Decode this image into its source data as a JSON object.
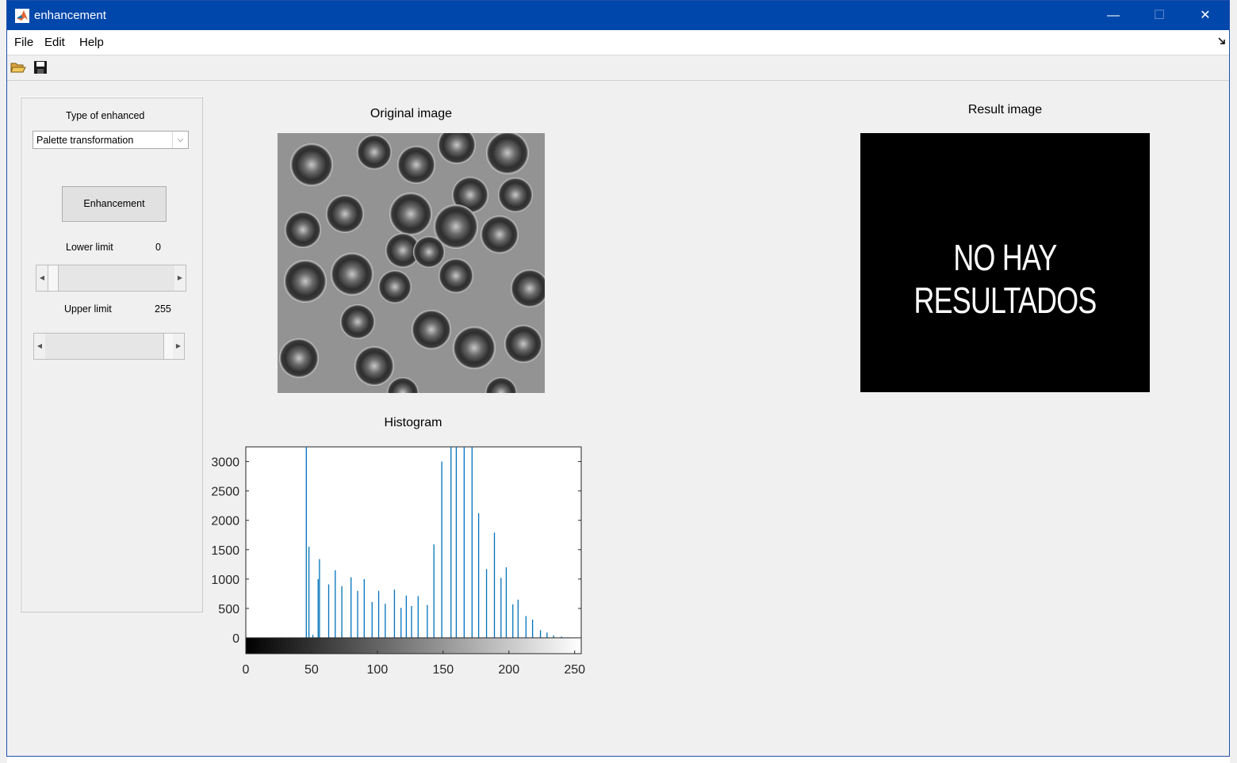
{
  "window": {
    "title": "enhancement",
    "controls": {
      "minimize": "—",
      "maximize": "☐",
      "close": "✕"
    }
  },
  "menu": [
    "File",
    "Edit",
    "Help"
  ],
  "toolbar": {
    "icons": [
      "open-folder-icon",
      "save-disk-icon"
    ]
  },
  "panel": {
    "type_label": "Type of enhanced",
    "type_selected": "Palette transformation",
    "enhance_button": "Enhancement",
    "lower_label": "Lower limit",
    "lower_value": "0",
    "upper_label": "Upper limit",
    "upper_value": "255",
    "lower_slider_fraction": 0,
    "upper_slider_fraction": 1
  },
  "original": {
    "title": "Original image"
  },
  "result": {
    "title": "Result image",
    "message": "NO HAY RESULTADOS"
  },
  "histogram": {
    "title": "Histogram"
  },
  "colors": {
    "titlebar": "#0047ab",
    "bar": "#0072bd",
    "window_bg": "#f0f0f0"
  },
  "chart_data": {
    "type": "bar",
    "title": "Histogram",
    "xlim": [
      0,
      255
    ],
    "ylim": [
      0,
      3250
    ],
    "xticks": [
      0,
      50,
      100,
      150,
      200,
      250
    ],
    "yticks": [
      0,
      500,
      1000,
      1500,
      2000,
      2500,
      3000
    ],
    "x": [
      46,
      48,
      51,
      55,
      56,
      63,
      68,
      73,
      80,
      85,
      90,
      96,
      101,
      106,
      113,
      118,
      122,
      126,
      131,
      138,
      143,
      149,
      156,
      160,
      166,
      172,
      177,
      183,
      189,
      194,
      198,
      203,
      207,
      213,
      218,
      224,
      229,
      234,
      240,
      245
    ],
    "values": [
      3250,
      1550,
      50,
      1000,
      1340,
      910,
      1150,
      880,
      1030,
      800,
      1000,
      610,
      800,
      580,
      820,
      510,
      720,
      540,
      710,
      560,
      1590,
      3000,
      3250,
      3250,
      3250,
      3250,
      2120,
      1170,
      1790,
      1020,
      1200,
      570,
      650,
      370,
      310,
      130,
      90,
      40,
      20,
      10
    ]
  }
}
